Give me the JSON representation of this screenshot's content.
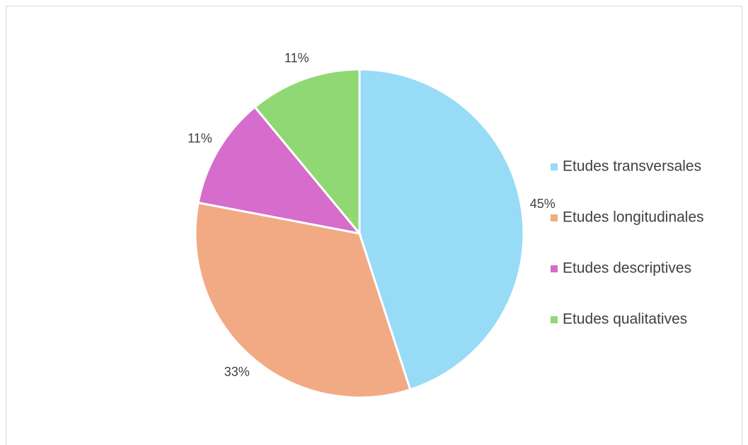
{
  "chart_data": {
    "type": "pie",
    "categories": [
      "Etudes transversales",
      "Etudes longitudinales",
      "Etudes descriptives",
      "Etudes qualitatives"
    ],
    "values": [
      45,
      33,
      11,
      11
    ],
    "value_labels": [
      "45%",
      "33%",
      "11%",
      "11%"
    ],
    "colors": [
      "#97dbf7",
      "#f2aa84",
      "#d66ccc",
      "#90d873"
    ],
    "legend": "right"
  }
}
